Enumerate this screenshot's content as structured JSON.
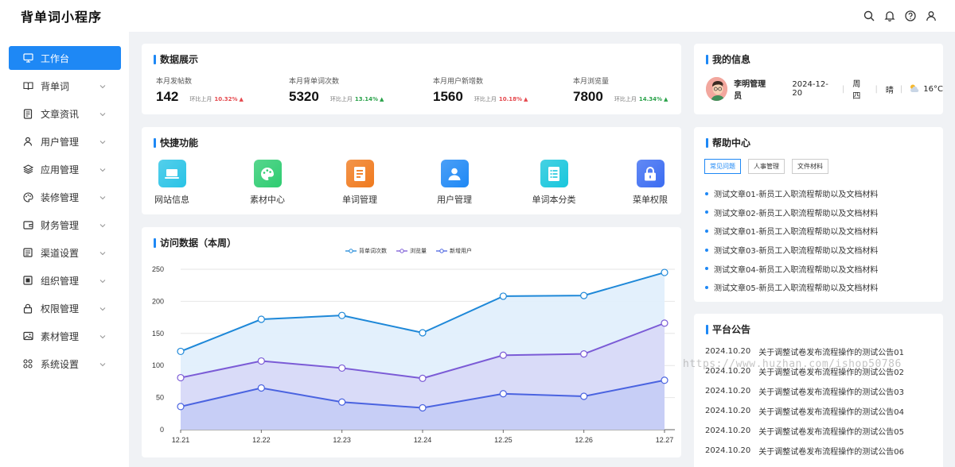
{
  "app": {
    "title": "背单词小程序"
  },
  "header": {
    "icons": [
      "search-icon",
      "bell-icon",
      "help-icon",
      "user-icon"
    ]
  },
  "sidebar": {
    "items": [
      {
        "label": "工作台",
        "icon": "monitor-icon",
        "active": true,
        "chevron": false
      },
      {
        "label": "背单词",
        "icon": "book-icon",
        "chevron": true
      },
      {
        "label": "文章资讯",
        "icon": "document-icon",
        "chevron": true
      },
      {
        "label": "用户管理",
        "icon": "user-icon",
        "chevron": true
      },
      {
        "label": "应用管理",
        "icon": "layers-icon",
        "chevron": true
      },
      {
        "label": "装修管理",
        "icon": "palette-icon",
        "chevron": true
      },
      {
        "label": "财务管理",
        "icon": "wallet-icon",
        "chevron": true
      },
      {
        "label": "渠道设置",
        "icon": "channel-icon",
        "chevron": true
      },
      {
        "label": "组织管理",
        "icon": "org-icon",
        "chevron": true
      },
      {
        "label": "权限管理",
        "icon": "lock-icon",
        "chevron": true
      },
      {
        "label": "素材管理",
        "icon": "image-icon",
        "chevron": true
      },
      {
        "label": "系统设置",
        "icon": "grid-icon",
        "chevron": true
      }
    ]
  },
  "stats": {
    "title": "数据展示",
    "items": [
      {
        "label": "本月发帖数",
        "value": "142",
        "compare_label": "环比上月",
        "pct": "10.32%",
        "trend": "up",
        "color": "#e5484d"
      },
      {
        "label": "本月背单词次数",
        "value": "5320",
        "compare_label": "环比上月",
        "pct": "13.14%",
        "trend": "up",
        "color": "#2aa24a"
      },
      {
        "label": "本月用户新增数",
        "value": "1560",
        "compare_label": "环比上月",
        "pct": "10.18%",
        "trend": "up",
        "color": "#e5484d"
      },
      {
        "label": "本月浏览量",
        "value": "7800",
        "compare_label": "环比上月",
        "pct": "14.34%",
        "trend": "up",
        "color": "#2aa24a"
      }
    ]
  },
  "quick": {
    "title": "快捷功能",
    "items": [
      {
        "label": "网站信息",
        "icon": "laptop-icon",
        "color": "#29c3e6"
      },
      {
        "label": "素材中心",
        "icon": "palette-icon",
        "color": "#2ecc71"
      },
      {
        "label": "单词管理",
        "icon": "file-icon",
        "color": "#f07a1e"
      },
      {
        "label": "用户管理",
        "icon": "user-icon",
        "color": "#1e88f5"
      },
      {
        "label": "单词本分类",
        "icon": "list-icon",
        "color": "#18c6dc"
      },
      {
        "label": "菜单权限",
        "icon": "lock-icon",
        "color": "#3b6cf2"
      }
    ]
  },
  "visits": {
    "title": "访问数据（本周）"
  },
  "chart_data": {
    "type": "area",
    "categories": [
      "12.21",
      "12.22",
      "12.23",
      "12.24",
      "12.25",
      "12.26",
      "12.27"
    ],
    "series": [
      {
        "name": "背单词次数",
        "values": [
          122,
          172,
          178,
          151,
          208,
          209,
          245
        ],
        "color": "#1e88d8",
        "fill": "#e1effc"
      },
      {
        "name": "浏览量",
        "values": [
          81,
          107,
          96,
          80,
          116,
          118,
          166
        ],
        "color": "#7b5bd6",
        "fill": "#d8d9f8"
      },
      {
        "name": "新增用户",
        "values": [
          36,
          65,
          43,
          34,
          56,
          52,
          77
        ],
        "color": "#4a63e0",
        "fill": "#c6cdf6"
      }
    ],
    "ylim": [
      0,
      250
    ],
    "yticks": [
      0,
      50,
      100,
      150,
      200,
      250
    ],
    "grid": true,
    "legend": "top"
  },
  "myinfo": {
    "title": "我的信息",
    "name": "李明管理员",
    "date": "2024-12-20",
    "weekday": "周四",
    "weather": "晴",
    "temp": "16°C"
  },
  "help": {
    "title": "帮助中心",
    "tabs": [
      "常见问题",
      "人事管理",
      "文件材料"
    ],
    "items": [
      "测试文章01-新员工入职流程帮助以及文档材料",
      "测试文章02-新员工入职流程帮助以及文档材料",
      "测试文章01-新员工入职流程帮助以及文档材料",
      "测试文章03-新员工入职流程帮助以及文档材料",
      "测试文章04-新员工入职流程帮助以及文档材料",
      "测试文章05-新员工入职流程帮助以及文档材料"
    ]
  },
  "notice": {
    "title": "平台公告",
    "items": [
      {
        "date": "2024.10.20",
        "text": "关于调整试卷发布流程操作的测试公告01"
      },
      {
        "date": "2024.10.20",
        "text": "关于调整试卷发布流程操作的测试公告02"
      },
      {
        "date": "2024.10.20",
        "text": "关于调整试卷发布流程操作的测试公告03"
      },
      {
        "date": "2024.10.20",
        "text": "关于调整试卷发布流程操作的测试公告04"
      },
      {
        "date": "2024.10.20",
        "text": "关于调整试卷发布流程操作的测试公告05"
      },
      {
        "date": "2024.10.20",
        "text": "关于调整试卷发布流程操作的测试公告06"
      }
    ]
  },
  "watermark": "https://www.huzhan.com/ishop50786"
}
